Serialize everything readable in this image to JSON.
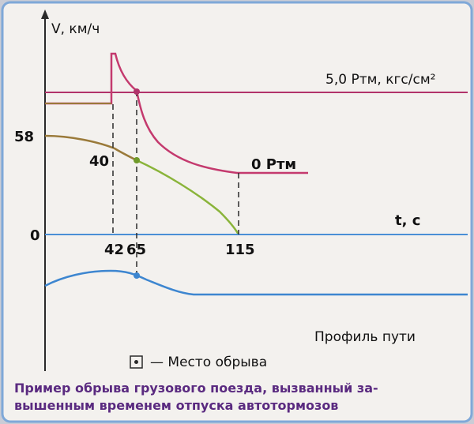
{
  "figure": {
    "y_axis_label": "V, км/ч",
    "pressure_high_label": "5,0 Pтм, кгс/см²",
    "pressure_zero_label": "0 Pтм",
    "speed_start_label": "58",
    "speed_break_label": "40",
    "speed_zero_label": "0",
    "time_axis_label": "t, c",
    "time_ticks": [
      "42",
      "65",
      "115"
    ],
    "profile_label": "Профиль пути",
    "legend_label": "— Место обрыва",
    "caption_line1": "Пример обрыва грузового поезда, вызванный за-",
    "caption_line2": "вышенным временем отпуска автотормозов"
  },
  "colors": {
    "pressure": "#c43a6e",
    "pressure_line": "#b1336a",
    "speed_brown": "#9a7a3a",
    "speed_green": "#8ab43a",
    "axis_blue": "#4a8fd6",
    "profile": "#3d86d0",
    "caption": "#5a2a80",
    "frame": "#7fa8d8"
  }
}
